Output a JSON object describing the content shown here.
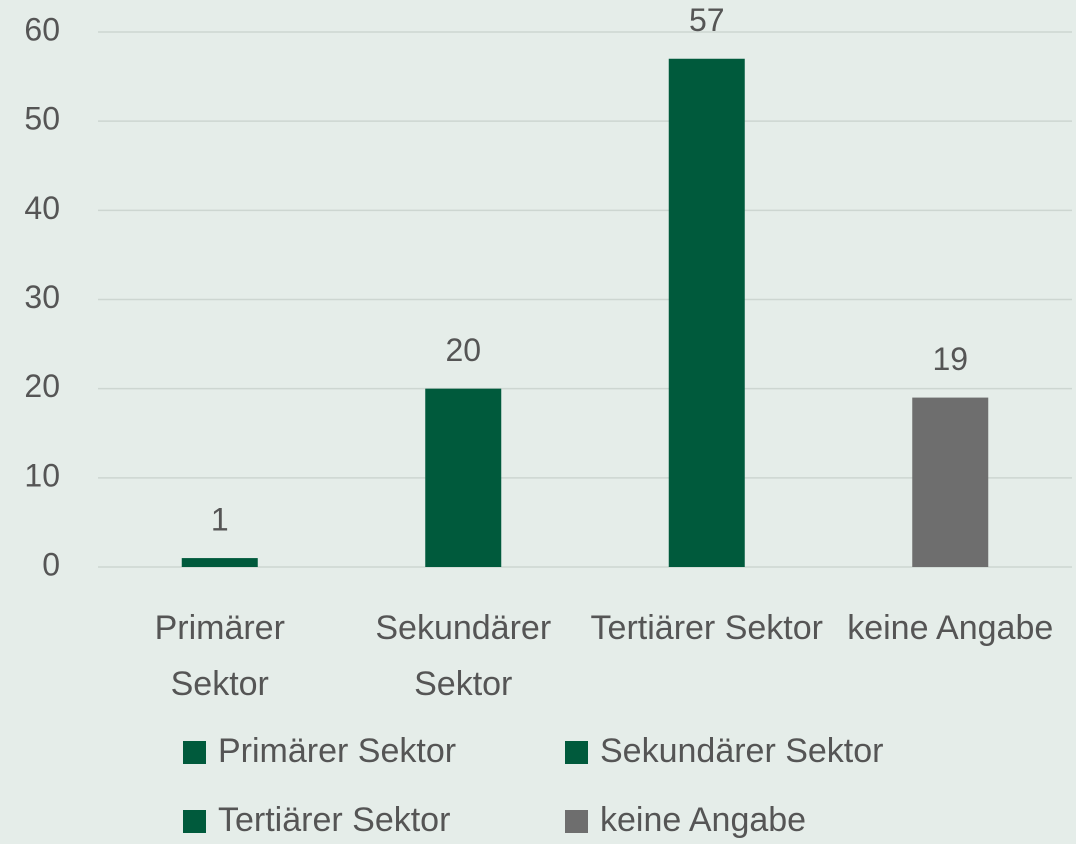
{
  "chart_data": {
    "type": "bar",
    "categories": [
      "Primärer Sektor",
      "Sekundärer Sektor",
      "Tertiärer Sektor",
      "keine Angabe"
    ],
    "values": [
      1,
      20,
      57,
      19
    ],
    "colors": [
      "#005a3c",
      "#005a3c",
      "#005a3c",
      "#6e6e6e"
    ],
    "ylim": [
      0,
      60
    ],
    "yticks": [
      0,
      10,
      20,
      30,
      40,
      50,
      60
    ],
    "grid": true,
    "legend": "bottom"
  }
}
